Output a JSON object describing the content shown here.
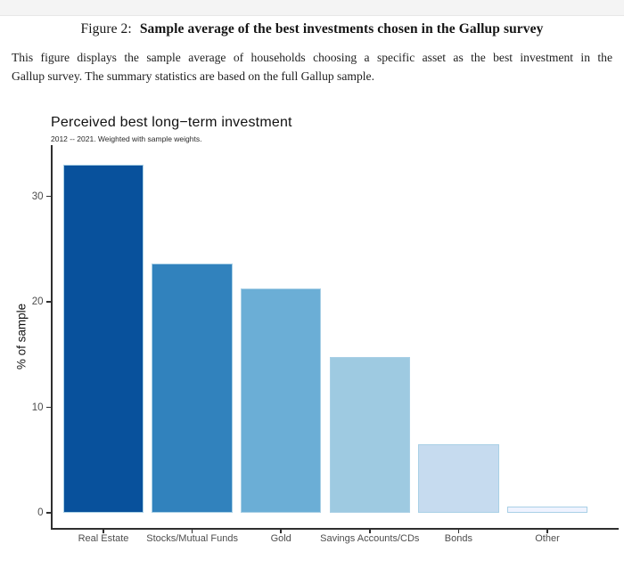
{
  "document": {
    "header_prefix": "Figure 2:",
    "header_title": "Sample average of the best investments chosen in the Gallup survey",
    "caption_line1": "This figure displays the sample average of households choosing a specific asset as the best investment in the",
    "caption_line2": "Gallup survey. The summary statistics are based on the full Gallup sample."
  },
  "chart_data": {
    "type": "bar",
    "title": "Perceived best long−term investment",
    "subtitle": "2012 -- 2021. Weighted with sample weights.",
    "ylabel": "% of sample",
    "xlabel": "",
    "categories": [
      "Real Estate",
      "Stocks/Mutual Funds",
      "Gold",
      "Savings Accounts/CDs",
      "Bonds",
      "Other"
    ],
    "values": [
      33.0,
      23.6,
      21.3,
      14.8,
      6.5,
      0.6
    ],
    "yticks": [
      0,
      10,
      20,
      30
    ],
    "ylim": [
      0,
      34.8
    ],
    "grid": false,
    "legend": "none",
    "bar_colors": [
      "#08519c",
      "#3182bd",
      "#6baed6",
      "#9ecae1",
      "#c6dbef",
      "#eff3ff"
    ],
    "bar_border_color": "#a9d0e6",
    "axis_color": "#2f2f2f",
    "tick_label_color": "#4d4d4d"
  }
}
